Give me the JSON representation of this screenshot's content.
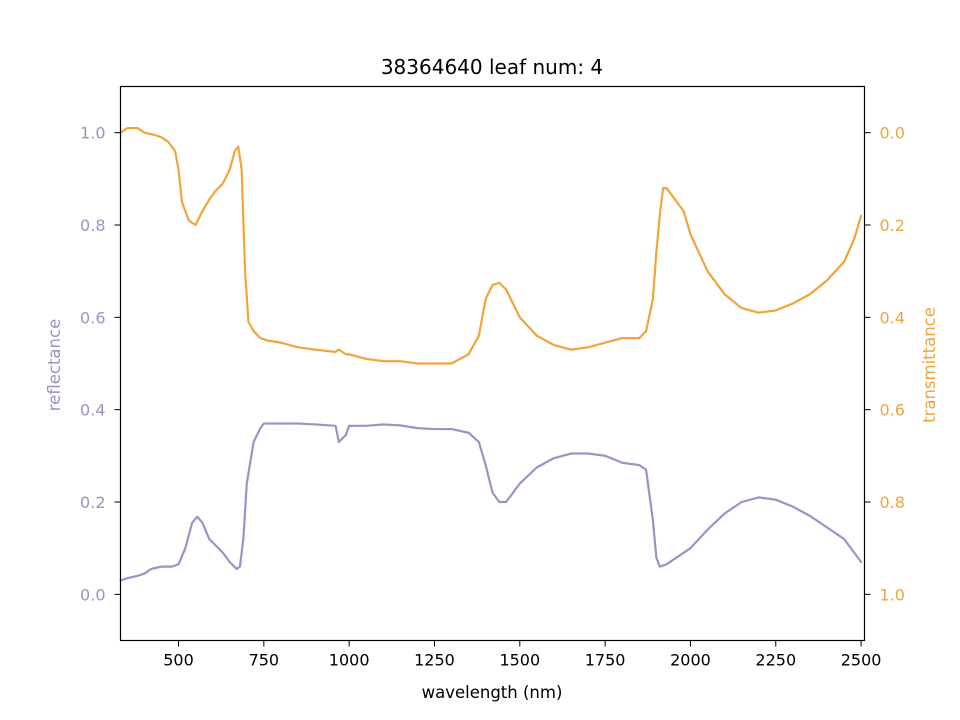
{
  "chart_data": {
    "type": "line",
    "title": "38364640 leaf num: 4",
    "xlabel": "wavelength (nm)",
    "ylabel_left": "reflectance",
    "ylabel_right": "transmittance",
    "xlim": [
      330,
      2510
    ],
    "ylim_left": [
      -0.1,
      1.1
    ],
    "ylim_right": [
      1.1,
      -0.1
    ],
    "right_axis_inverted": true,
    "grid": false,
    "x_ticks": [
      500,
      750,
      1000,
      1250,
      1500,
      1750,
      2000,
      2250,
      2500
    ],
    "x_tick_labels": [
      "500",
      "750",
      "1000",
      "1250",
      "1500",
      "1750",
      "2000",
      "2250",
      "2500"
    ],
    "y_left_ticks": [
      0.0,
      0.2,
      0.4,
      0.6,
      0.8,
      1.0
    ],
    "y_left_tick_labels": [
      "0.0",
      "0.2",
      "0.4",
      "0.6",
      "0.8",
      "1.0"
    ],
    "y_right_ticks": [
      0.0,
      0.2,
      0.4,
      0.6,
      0.8,
      1.0
    ],
    "y_right_tick_labels": [
      "0.0",
      "0.2",
      "0.4",
      "0.6",
      "0.8",
      "1.0"
    ],
    "colors": {
      "reflectance": "#9a93c6",
      "transmittance": "#f0a43c",
      "axes": "#000000"
    },
    "series": [
      {
        "axis": "left",
        "color": "#9a93c6",
        "x": [
          330,
          350,
          380,
          400,
          420,
          450,
          480,
          500,
          520,
          540,
          555,
          570,
          590,
          610,
          630,
          650,
          670,
          680,
          690,
          700,
          720,
          740,
          750,
          760,
          800,
          850,
          900,
          960,
          970,
          990,
          1000,
          1050,
          1100,
          1150,
          1200,
          1250,
          1300,
          1350,
          1380,
          1400,
          1420,
          1440,
          1460,
          1480,
          1500,
          1550,
          1600,
          1650,
          1700,
          1750,
          1800,
          1850,
          1870,
          1890,
          1900,
          1910,
          1930,
          1950,
          2000,
          2050,
          2100,
          2150,
          2200,
          2250,
          2300,
          2350,
          2400,
          2450,
          2480,
          2500
        ],
        "y": [
          0.03,
          0.035,
          0.04,
          0.045,
          0.055,
          0.06,
          0.06,
          0.065,
          0.1,
          0.155,
          0.168,
          0.155,
          0.12,
          0.105,
          0.09,
          0.07,
          0.055,
          0.06,
          0.12,
          0.24,
          0.33,
          0.36,
          0.37,
          0.37,
          0.37,
          0.37,
          0.368,
          0.365,
          0.33,
          0.345,
          0.365,
          0.365,
          0.368,
          0.366,
          0.36,
          0.358,
          0.358,
          0.35,
          0.33,
          0.28,
          0.22,
          0.2,
          0.2,
          0.22,
          0.24,
          0.275,
          0.295,
          0.305,
          0.305,
          0.3,
          0.285,
          0.28,
          0.27,
          0.16,
          0.08,
          0.06,
          0.065,
          0.075,
          0.1,
          0.14,
          0.175,
          0.2,
          0.21,
          0.205,
          0.19,
          0.17,
          0.145,
          0.12,
          0.09,
          0.07
        ]
      },
      {
        "axis": "right",
        "color": "#f0a43c",
        "x": [
          330,
          350,
          380,
          400,
          430,
          450,
          470,
          490,
          500,
          510,
          530,
          550,
          570,
          590,
          610,
          630,
          650,
          665,
          675,
          685,
          695,
          705,
          720,
          740,
          760,
          800,
          850,
          900,
          960,
          970,
          990,
          1000,
          1050,
          1100,
          1150,
          1200,
          1250,
          1300,
          1350,
          1380,
          1400,
          1420,
          1440,
          1460,
          1480,
          1500,
          1550,
          1600,
          1650,
          1700,
          1750,
          1800,
          1850,
          1870,
          1890,
          1900,
          1910,
          1920,
          1930,
          1950,
          1980,
          2000,
          2050,
          2100,
          2150,
          2200,
          2250,
          2300,
          2350,
          2400,
          2450,
          2480,
          2500
        ],
        "y": [
          0.0,
          -0.01,
          -0.01,
          0.0,
          0.005,
          0.01,
          0.02,
          0.04,
          0.08,
          0.15,
          0.19,
          0.2,
          0.17,
          0.145,
          0.125,
          0.11,
          0.08,
          0.04,
          0.03,
          0.08,
          0.3,
          0.41,
          0.43,
          0.445,
          0.45,
          0.455,
          0.465,
          0.47,
          0.475,
          0.47,
          0.48,
          0.48,
          0.49,
          0.495,
          0.495,
          0.5,
          0.5,
          0.5,
          0.48,
          0.44,
          0.36,
          0.33,
          0.325,
          0.34,
          0.37,
          0.4,
          0.44,
          0.46,
          0.47,
          0.465,
          0.455,
          0.445,
          0.445,
          0.43,
          0.36,
          0.26,
          0.18,
          0.12,
          0.12,
          0.14,
          0.17,
          0.22,
          0.3,
          0.35,
          0.38,
          0.39,
          0.385,
          0.37,
          0.35,
          0.32,
          0.28,
          0.23,
          0.18
        ]
      }
    ]
  }
}
